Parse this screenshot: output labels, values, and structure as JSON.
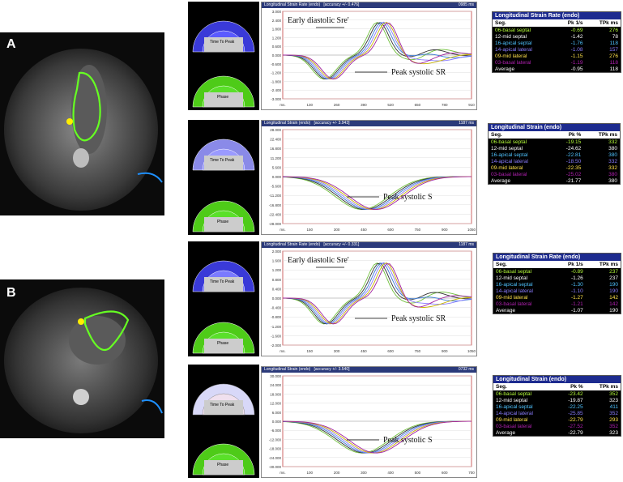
{
  "panels": [
    {
      "label": "A"
    },
    {
      "label": "B"
    }
  ],
  "charts": [
    {
      "title": "Longitudinal Strain Rate (endo)",
      "accuracy": "[accuracy +/- 0.476]",
      "ms": "0985 ms",
      "annotations": [
        "Early diastolic Sre'",
        "Peak systolic SR"
      ],
      "yticks": [
        "3.000",
        "2.400",
        "1.800",
        "1.200",
        "0.600",
        "0.000",
        "-0.600",
        "-1.200",
        "-1.800",
        "-2.400",
        "-3.000"
      ],
      "xticks": [
        "ms.",
        "130",
        "260",
        "390",
        "520",
        "650",
        "780",
        "910"
      ],
      "table": {
        "title": "Longitudinal Strain Rate (endo)",
        "headers": [
          "Seg.",
          "Pk 1/s",
          "TPk ms"
        ],
        "rows": [
          [
            "06-basal septal",
            "-0.69",
            "276"
          ],
          [
            "12-mid septal",
            "-1.42",
            "78"
          ],
          [
            "16-apical septal",
            "-1.76",
            "118"
          ],
          [
            "14-apical lateral",
            "-1.08",
            "157"
          ],
          [
            "09-mid lateral",
            "-1.15",
            "276"
          ],
          [
            "03-basal lateral",
            "-1.19",
            "118"
          ],
          [
            "Average",
            "-0.95",
            "118"
          ]
        ]
      }
    },
    {
      "title": "Longitudinal Strain (endo)",
      "accuracy": "[accuracy +/- 3.943]",
      "ms": "1187 ms",
      "annotations": [
        "Peak systolic S"
      ],
      "yticks": [
        "28.000",
        "22.400",
        "16.800",
        "11.200",
        "5.600",
        "0.000",
        "-5.600",
        "-11.200",
        "-16.800",
        "-22.400",
        "-28.000"
      ],
      "xticks": [
        "ms.",
        "150",
        "300",
        "450",
        "600",
        "750",
        "900",
        "1050"
      ],
      "table": {
        "title": "Longitudinal Strain (endo)",
        "headers": [
          "Seg.",
          "Pk %",
          "TPk ms"
        ],
        "rows": [
          [
            "06-basal septal",
            "-19.15",
            "332"
          ],
          [
            "12-mid septal",
            "-24.62",
            "380"
          ],
          [
            "16-apical septal",
            "-22.81",
            "380"
          ],
          [
            "14-apical lateral",
            "-18.50",
            "332"
          ],
          [
            "09-mid lateral",
            "-22.35",
            "332"
          ],
          [
            "03-basal lateral",
            "-25.02",
            "380"
          ],
          [
            "Average",
            "-21.77",
            "380"
          ]
        ]
      }
    },
    {
      "title": "Longitudinal Strain Rate (endo)",
      "accuracy": "[accuracy +/- 0.331]",
      "ms": "1187 ms",
      "annotations": [
        "Early diastolic Sre'",
        "Peak systolic SR"
      ],
      "yticks": [
        "2.000",
        "1.600",
        "1.200",
        "0.800",
        "0.400",
        "0.000",
        "-0.400",
        "-0.800",
        "-1.200",
        "-1.600",
        "-2.000"
      ],
      "xticks": [
        "ms.",
        "150",
        "300",
        "450",
        "600",
        "750",
        "900",
        "1050"
      ],
      "table": {
        "title": "Longitudinal Strain Rate (endo)",
        "headers": [
          "Seg.",
          "Pk 1/s",
          "TPk ms"
        ],
        "rows": [
          [
            "06-basal septal",
            "-0.89",
            "237"
          ],
          [
            "12-mid septal",
            "-1.26",
            "237"
          ],
          [
            "16-apical septal",
            "-1.30",
            "190"
          ],
          [
            "14-apical lateral",
            "-1.10",
            "190"
          ],
          [
            "09-mid lateral",
            "-1.27",
            "142"
          ],
          [
            "03-basal lateral",
            "-1.21",
            "142"
          ],
          [
            "Average",
            "-1.07",
            "190"
          ]
        ]
      }
    },
    {
      "title": "Longitudinal Strain (endo)",
      "accuracy": "[accuracy +/- 3.540]",
      "ms": "0732 ms",
      "annotations": [
        "Peak systolic S"
      ],
      "yticks": [
        "30.000",
        "24.000",
        "18.000",
        "12.000",
        "6.000",
        "0.000",
        "-6.000",
        "-12.000",
        "-18.000",
        "-24.000",
        "-30.000"
      ],
      "xticks": [
        "ms.",
        "100",
        "200",
        "300",
        "400",
        "500",
        "600",
        "700"
      ],
      "table": {
        "title": "Longitudinal Strain (endo)",
        "headers": [
          "Seg.",
          "Pk %",
          "TPk ms"
        ],
        "rows": [
          [
            "06-basal septal",
            "-23.42",
            "352"
          ],
          [
            "12-mid septal",
            "-19.87",
            "323"
          ],
          [
            "16-apical septal",
            "-22.25",
            "411"
          ],
          [
            "14-apical lateral",
            "-25.85",
            "352"
          ],
          [
            "09-mid lateral",
            "-22.79",
            "293"
          ],
          [
            "03-basal lateral",
            "-27.52",
            "352"
          ],
          [
            "Average",
            "-22.79",
            "323"
          ]
        ]
      }
    }
  ],
  "row_colors": [
    "#b6ff3a",
    "#ffffff",
    "#4fc3ff",
    "#8a7dff",
    "#ffe24a",
    "#b020b0",
    "#ffffff"
  ],
  "bullseye": {
    "time_to_peak": "Time To Peak",
    "phase": "Phase"
  }
}
